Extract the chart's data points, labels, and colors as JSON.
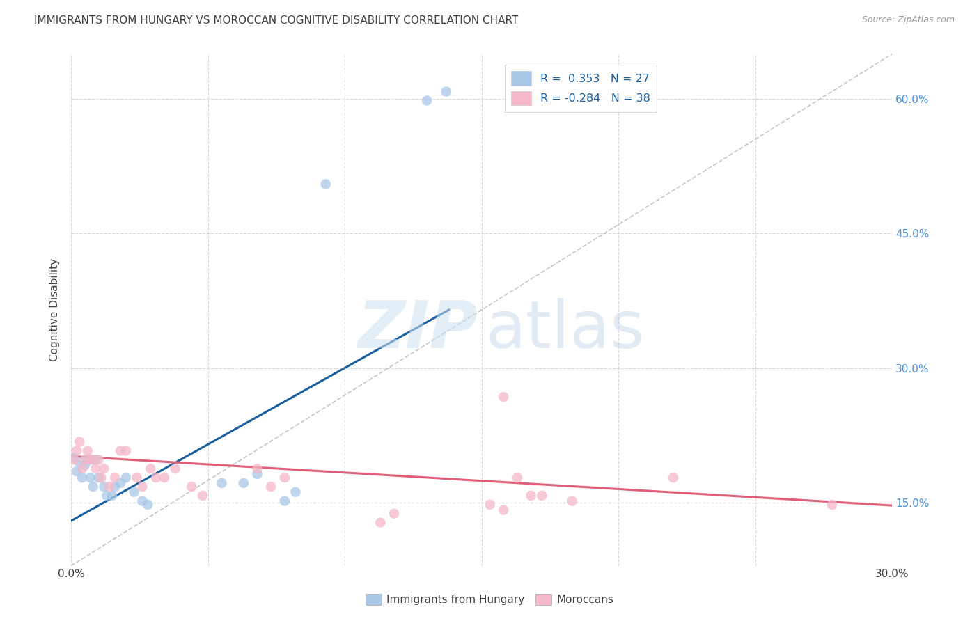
{
  "title": "IMMIGRANTS FROM HUNGARY VS MOROCCAN COGNITIVE DISABILITY CORRELATION CHART",
  "source": "Source: ZipAtlas.com",
  "ylabel": "Cognitive Disability",
  "xlim": [
    0.0,
    0.3
  ],
  "ylim": [
    0.08,
    0.65
  ],
  "x_ticks": [
    0.0,
    0.05,
    0.1,
    0.15,
    0.2,
    0.25,
    0.3
  ],
  "x_tick_labels": [
    "0.0%",
    "",
    "",
    "",
    "",
    "",
    "30.0%"
  ],
  "y_ticks": [
    0.15,
    0.3,
    0.45,
    0.6
  ],
  "y_tick_labels": [
    "15.0%",
    "30.0%",
    "45.0%",
    "60.0%"
  ],
  "legend_r1": "R =  0.353   N = 27",
  "legend_r2": "R = -0.284   N = 38",
  "color_blue": "#a8c8e8",
  "color_pink": "#f4b8c8",
  "line_blue": "#1a5fa0",
  "line_pink": "#e0607a",
  "line_diag": "#b8b8b8",
  "background": "#ffffff",
  "grid_color": "#d8d8d8",
  "title_color": "#404040",
  "axis_label_color": "#404040",
  "tick_color_right": "#4a90d9",
  "tick_color_bottom": "#404040",
  "blue_points": [
    [
      0.001,
      0.2
    ],
    [
      0.002,
      0.185
    ],
    [
      0.003,
      0.195
    ],
    [
      0.004,
      0.178
    ],
    [
      0.005,
      0.192
    ],
    [
      0.006,
      0.198
    ],
    [
      0.007,
      0.178
    ],
    [
      0.008,
      0.168
    ],
    [
      0.009,
      0.198
    ],
    [
      0.01,
      0.178
    ],
    [
      0.012,
      0.168
    ],
    [
      0.013,
      0.158
    ],
    [
      0.015,
      0.158
    ],
    [
      0.016,
      0.168
    ],
    [
      0.018,
      0.172
    ],
    [
      0.02,
      0.178
    ],
    [
      0.023,
      0.162
    ],
    [
      0.026,
      0.152
    ],
    [
      0.028,
      0.148
    ],
    [
      0.055,
      0.172
    ],
    [
      0.063,
      0.172
    ],
    [
      0.068,
      0.182
    ],
    [
      0.078,
      0.152
    ],
    [
      0.082,
      0.162
    ],
    [
      0.13,
      0.598
    ],
    [
      0.137,
      0.608
    ],
    [
      0.093,
      0.505
    ]
  ],
  "pink_points": [
    [
      0.001,
      0.198
    ],
    [
      0.002,
      0.208
    ],
    [
      0.003,
      0.218
    ],
    [
      0.004,
      0.188
    ],
    [
      0.005,
      0.198
    ],
    [
      0.006,
      0.208
    ],
    [
      0.007,
      0.198
    ],
    [
      0.008,
      0.198
    ],
    [
      0.009,
      0.188
    ],
    [
      0.01,
      0.198
    ],
    [
      0.011,
      0.178
    ],
    [
      0.012,
      0.188
    ],
    [
      0.014,
      0.168
    ],
    [
      0.016,
      0.178
    ],
    [
      0.018,
      0.208
    ],
    [
      0.02,
      0.208
    ],
    [
      0.024,
      0.178
    ],
    [
      0.026,
      0.168
    ],
    [
      0.029,
      0.188
    ],
    [
      0.031,
      0.178
    ],
    [
      0.034,
      0.178
    ],
    [
      0.038,
      0.188
    ],
    [
      0.044,
      0.168
    ],
    [
      0.048,
      0.158
    ],
    [
      0.068,
      0.188
    ],
    [
      0.073,
      0.168
    ],
    [
      0.078,
      0.178
    ],
    [
      0.158,
      0.268
    ],
    [
      0.163,
      0.178
    ],
    [
      0.168,
      0.158
    ],
    [
      0.22,
      0.178
    ],
    [
      0.278,
      0.148
    ],
    [
      0.113,
      0.128
    ],
    [
      0.118,
      0.138
    ],
    [
      0.153,
      0.148
    ],
    [
      0.158,
      0.142
    ],
    [
      0.172,
      0.158
    ],
    [
      0.183,
      0.152
    ]
  ],
  "blue_line_x": [
    0.0,
    0.138
  ],
  "blue_line_y": [
    0.13,
    0.365
  ],
  "pink_line_x": [
    0.0,
    0.3
  ],
  "pink_line_y": [
    0.202,
    0.147
  ],
  "diag_line_x": [
    0.0,
    0.3
  ],
  "diag_line_y": [
    0.08,
    0.65
  ]
}
